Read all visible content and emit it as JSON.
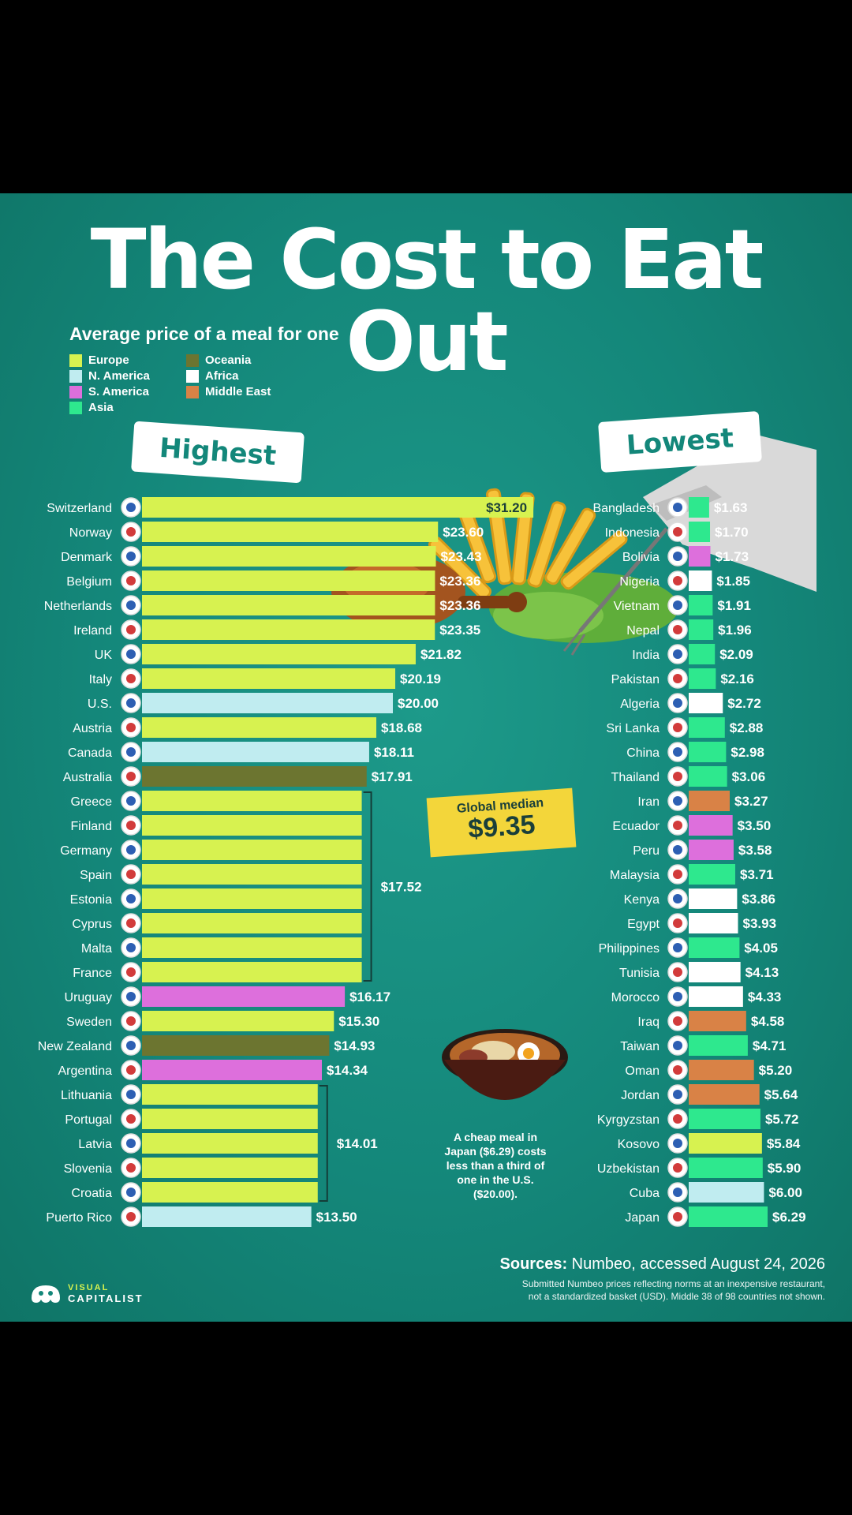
{
  "title": "The Cost to Eat Out",
  "subtitle": "Average price of a meal for one",
  "highest_tag": "Highest",
  "lowest_tag": "Lowest",
  "legend": [
    {
      "name": "Europe",
      "color": "#d7f250"
    },
    {
      "name": "N. America",
      "color": "#c0ecf0"
    },
    {
      "name": "S. America",
      "color": "#dd6fdc"
    },
    {
      "name": "Asia",
      "color": "#2ee88e"
    },
    {
      "name": "Oceania",
      "color": "#6c7530"
    },
    {
      "name": "Africa",
      "color": "#ffffff"
    },
    {
      "name": "Middle East",
      "color": "#d98246"
    }
  ],
  "median": {
    "label": "Global median",
    "value": "$9.35"
  },
  "note": "A cheap meal in Japan ($6.29) costs less than a third of one in the U.S. ($20.00).",
  "sources": {
    "label": "Sources:",
    "text": "Numbeo, accessed August 24, 2026",
    "fine_1": "Submitted Numbeo prices reflecting norms at an inexpensive restaurant,",
    "fine_2": "not a standardized basket (USD). Middle 38 of 98 countries not shown."
  },
  "brand": {
    "line1": "VISUAL",
    "line2": "CAPITALIST"
  },
  "chart_data": [
    {
      "type": "bar",
      "orientation": "horizontal",
      "panel": "Highest",
      "categories": [
        "Switzerland",
        "Norway",
        "Denmark",
        "Belgium",
        "Netherlands",
        "Ireland",
        "UK",
        "Italy",
        "U.S.",
        "Austria",
        "Canada",
        "Australia",
        "Greece",
        "Finland",
        "Germany",
        "Spain",
        "Estonia",
        "Cyprus",
        "Malta",
        "France",
        "Uruguay",
        "Sweden",
        "New Zealand",
        "Argentina",
        "Lithuania",
        "Portugal",
        "Latvia",
        "Slovenia",
        "Croatia",
        "Puerto Rico"
      ],
      "values": [
        31.2,
        23.6,
        23.43,
        23.36,
        23.36,
        23.35,
        21.82,
        20.19,
        20.0,
        18.68,
        18.11,
        17.91,
        17.52,
        17.52,
        17.52,
        17.52,
        17.52,
        17.52,
        17.52,
        17.52,
        16.17,
        15.3,
        14.93,
        14.34,
        14.01,
        14.01,
        14.01,
        14.01,
        14.01,
        13.5
      ],
      "labels": [
        "$31.20",
        "$23.60",
        "$23.43",
        "$23.36",
        "$23.36",
        "$23.35",
        "$21.82",
        "$20.19",
        "$20.00",
        "$18.68",
        "$18.11",
        "$17.91",
        "",
        "",
        "",
        "",
        "",
        "",
        "",
        "",
        "$16.17",
        "$15.30",
        "$14.93",
        "$14.34",
        "",
        "",
        "",
        "",
        "",
        "$13.50"
      ],
      "regions": [
        "Europe",
        "Europe",
        "Europe",
        "Europe",
        "Europe",
        "Europe",
        "Europe",
        "Europe",
        "N. America",
        "Europe",
        "N. America",
        "Oceania",
        "Europe",
        "Europe",
        "Europe",
        "Europe",
        "Europe",
        "Europe",
        "Europe",
        "Europe",
        "S. America",
        "Europe",
        "Oceania",
        "S. America",
        "Europe",
        "Europe",
        "Europe",
        "Europe",
        "Europe",
        "N. America"
      ],
      "groups": [
        {
          "label": "$17.52",
          "from": 12,
          "to": 19
        },
        {
          "label": "$14.01",
          "from": 24,
          "to": 28
        }
      ]
    },
    {
      "type": "bar",
      "orientation": "horizontal",
      "panel": "Lowest",
      "categories": [
        "Bangladesh",
        "Indonesia",
        "Bolivia",
        "Nigeria",
        "Vietnam",
        "Nepal",
        "India",
        "Pakistan",
        "Algeria",
        "Sri Lanka",
        "China",
        "Thailand",
        "Iran",
        "Ecuador",
        "Peru",
        "Malaysia",
        "Kenya",
        "Egypt",
        "Philippines",
        "Tunisia",
        "Morocco",
        "Iraq",
        "Taiwan",
        "Oman",
        "Jordan",
        "Kyrgyzstan",
        "Kosovo",
        "Uzbekistan",
        "Cuba",
        "Japan"
      ],
      "values": [
        1.63,
        1.7,
        1.73,
        1.85,
        1.91,
        1.96,
        2.09,
        2.16,
        2.72,
        2.88,
        2.98,
        3.06,
        3.27,
        3.5,
        3.58,
        3.71,
        3.86,
        3.93,
        4.05,
        4.13,
        4.33,
        4.58,
        4.71,
        5.2,
        5.64,
        5.72,
        5.84,
        5.9,
        6.0,
        6.29
      ],
      "labels": [
        "$1.63",
        "$1.70",
        "$1.73",
        "$1.85",
        "$1.91",
        "$1.96",
        "$2.09",
        "$2.16",
        "$2.72",
        "$2.88",
        "$2.98",
        "$3.06",
        "$3.27",
        "$3.50",
        "$3.58",
        "$3.71",
        "$3.86",
        "$3.93",
        "$4.05",
        "$4.13",
        "$4.33",
        "$4.58",
        "$4.71",
        "$5.20",
        "$5.64",
        "$5.72",
        "$5.84",
        "$5.90",
        "$6.00",
        "$6.29"
      ],
      "regions": [
        "Asia",
        "Asia",
        "S. America",
        "Africa",
        "Asia",
        "Asia",
        "Asia",
        "Asia",
        "Africa",
        "Asia",
        "Asia",
        "Asia",
        "Middle East",
        "S. America",
        "S. America",
        "Asia",
        "Africa",
        "Africa",
        "Asia",
        "Africa",
        "Africa",
        "Middle East",
        "Asia",
        "Middle East",
        "Middle East",
        "Asia",
        "Europe",
        "Asia",
        "N. America",
        "Asia"
      ]
    }
  ]
}
